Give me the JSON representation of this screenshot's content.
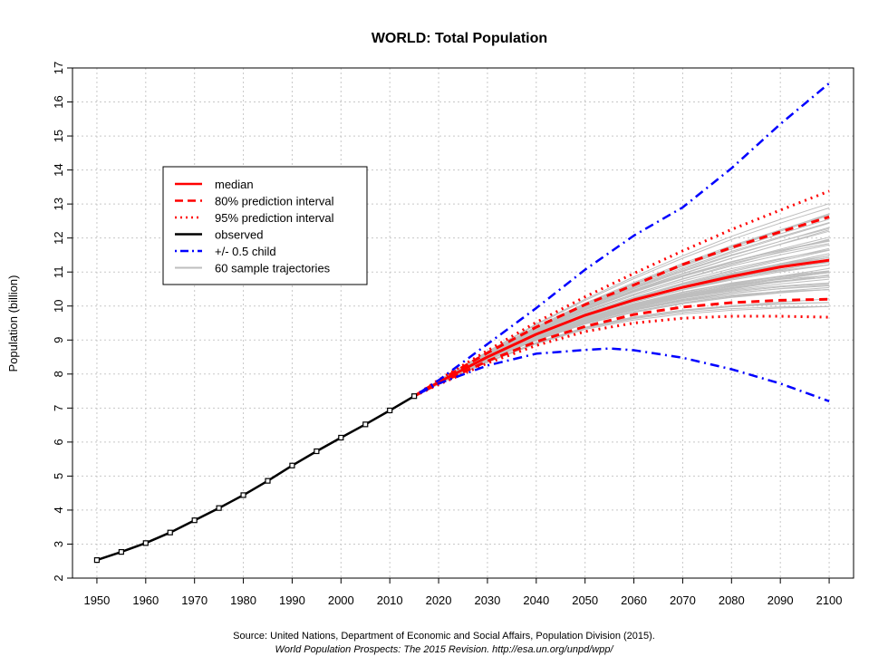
{
  "chart_data": {
    "type": "line",
    "title": "WORLD: Total Population",
    "xlabel": "",
    "ylabel": "Population (billion)",
    "xlim": [
      1945,
      2105
    ],
    "ylim": [
      2,
      17
    ],
    "x_ticks": [
      1950,
      1960,
      1970,
      1980,
      1990,
      2000,
      2010,
      2020,
      2030,
      2040,
      2050,
      2060,
      2070,
      2080,
      2090,
      2100
    ],
    "y_ticks": [
      2,
      3,
      4,
      5,
      6,
      7,
      8,
      9,
      10,
      11,
      12,
      13,
      14,
      15,
      16,
      17
    ],
    "grid": true,
    "legend_position": "top-left",
    "legend": [
      {
        "label": "median",
        "color": "#ff0000",
        "style": "solid"
      },
      {
        "label": "80% prediction interval",
        "color": "#ff0000",
        "style": "dashed"
      },
      {
        "label": "95% prediction interval",
        "color": "#ff0000",
        "style": "dotted"
      },
      {
        "label": "observed",
        "color": "#000000",
        "style": "solid"
      },
      {
        "label": "+/- 0.5 child",
        "color": "#0000ff",
        "style": "dotdash"
      },
      {
        "label": "60 sample trajectories",
        "color": "#bebebe",
        "style": "solid"
      }
    ],
    "series": [
      {
        "name": "observed",
        "color": "#000000",
        "x": [
          1950,
          1955,
          1960,
          1965,
          1970,
          1975,
          1980,
          1985,
          1990,
          1995,
          2000,
          2005,
          2010,
          2015
        ],
        "y": [
          2.53,
          2.77,
          3.03,
          3.34,
          3.7,
          4.06,
          4.44,
          4.86,
          5.31,
          5.73,
          6.13,
          6.52,
          6.93,
          7.35
        ]
      },
      {
        "name": "median",
        "color": "#ff0000",
        "x": [
          2015,
          2020,
          2030,
          2040,
          2050,
          2060,
          2070,
          2080,
          2090,
          2100
        ],
        "y": [
          7.35,
          7.76,
          8.5,
          9.17,
          9.73,
          10.18,
          10.55,
          10.87,
          11.15,
          11.35
        ]
      },
      {
        "name": "80% lower",
        "color": "#ff0000",
        "x": [
          2015,
          2020,
          2030,
          2040,
          2050,
          2060,
          2070,
          2080,
          2090,
          2100
        ],
        "y": [
          7.35,
          7.72,
          8.38,
          8.95,
          9.4,
          9.75,
          9.97,
          10.1,
          10.17,
          10.2
        ]
      },
      {
        "name": "80% upper",
        "color": "#ff0000",
        "x": [
          2015,
          2020,
          2030,
          2040,
          2050,
          2060,
          2070,
          2080,
          2090,
          2100
        ],
        "y": [
          7.35,
          7.8,
          8.62,
          9.38,
          10.04,
          10.62,
          11.22,
          11.72,
          12.18,
          12.62
        ]
      },
      {
        "name": "95% lower",
        "color": "#ff0000",
        "x": [
          2015,
          2020,
          2030,
          2040,
          2050,
          2060,
          2070,
          2080,
          2090,
          2100
        ],
        "y": [
          7.35,
          7.69,
          8.32,
          8.84,
          9.25,
          9.5,
          9.64,
          9.7,
          9.7,
          9.67
        ]
      },
      {
        "name": "95% upper",
        "color": "#ff0000",
        "x": [
          2015,
          2020,
          2030,
          2040,
          2050,
          2060,
          2070,
          2080,
          2090,
          2100
        ],
        "y": [
          7.35,
          7.83,
          8.69,
          9.52,
          10.27,
          10.96,
          11.62,
          12.25,
          12.82,
          13.38
        ]
      },
      {
        "name": "+0.5 child",
        "color": "#0000ff",
        "x": [
          2015,
          2020,
          2030,
          2040,
          2050,
          2060,
          2070,
          2080,
          2090,
          2100
        ],
        "y": [
          7.35,
          7.82,
          8.88,
          9.94,
          11.07,
          12.07,
          12.9,
          14.05,
          15.35,
          16.55
        ]
      },
      {
        "name": "-0.5 child",
        "color": "#0000ff",
        "x": [
          2015,
          2020,
          2030,
          2040,
          2050,
          2055,
          2060,
          2070,
          2080,
          2090,
          2100
        ],
        "y": [
          7.35,
          7.72,
          8.25,
          8.6,
          8.71,
          8.75,
          8.7,
          8.48,
          8.14,
          7.72,
          7.2
        ]
      }
    ],
    "sample_trajectories": {
      "count": 60,
      "color": "#bebebe",
      "x": [
        2015,
        2030,
        2050,
        2075,
        2100
      ],
      "end_range_2100": [
        9.8,
        13.5
      ]
    }
  },
  "source": {
    "line1": "Source: United Nations, Department of Economic and Social Affairs, Population Division (2015).",
    "line2": "World Population Prospects: The 2015 Revision. http://esa.un.org/unpd/wpp/"
  }
}
